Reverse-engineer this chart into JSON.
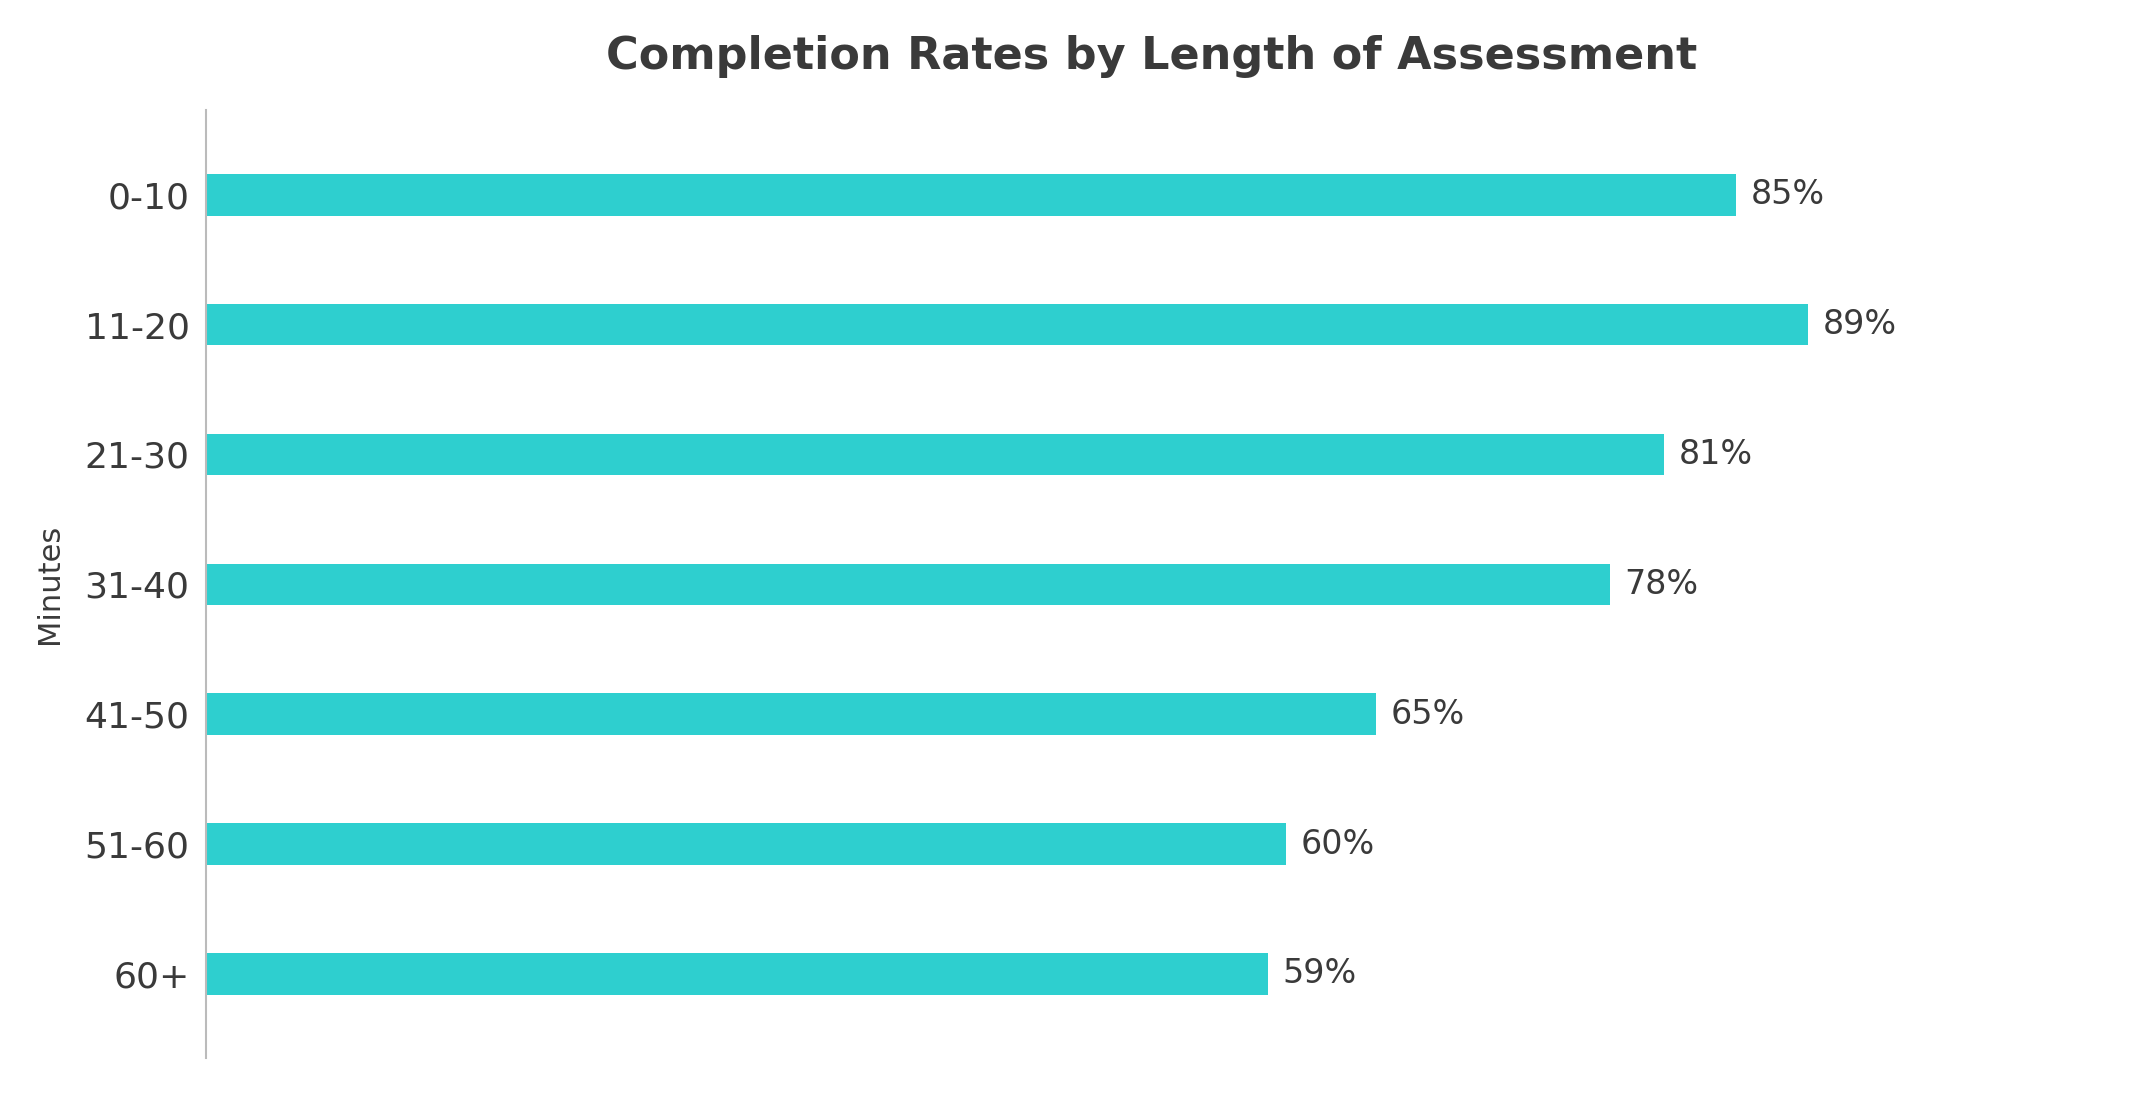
{
  "title": "Completion Rates by Length of Assessment",
  "title_fontsize": 32,
  "title_fontweight": "bold",
  "categories": [
    "0-10",
    "11-20",
    "21-30",
    "31-40",
    "41-50",
    "51-60",
    "60+"
  ],
  "values": [
    85,
    89,
    81,
    78,
    65,
    60,
    59
  ],
  "bar_color": "#2ECFCF",
  "ylabel": "Minutes",
  "ylabel_fontsize": 22,
  "tick_fontsize": 26,
  "label_fontsize": 24,
  "xlim": [
    0,
    105
  ],
  "background_color": "#ffffff",
  "bar_height": 0.32,
  "label_color": "#3a3a3a",
  "tick_color": "#3a3a3a",
  "spine_color": "#bbbbbb"
}
